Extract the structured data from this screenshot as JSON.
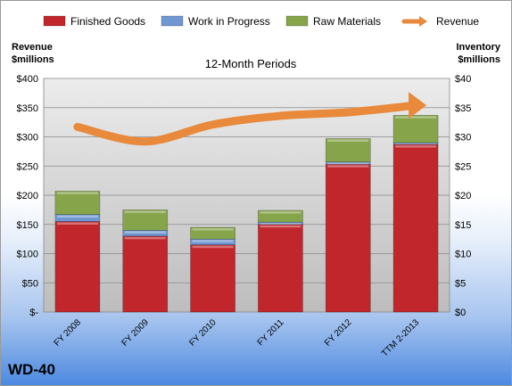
{
  "company": "WD-40",
  "chart_data": {
    "type": "bar",
    "subtitle": "12-Month Periods",
    "left_axis_label": [
      "Revenue",
      "$millions"
    ],
    "right_axis_label": [
      "Inventory",
      "$millions"
    ],
    "categories": [
      "FY 2008",
      "FY 2009",
      "FY 2010",
      "FY 2011",
      "FY 2012",
      "TTM 2-2013"
    ],
    "left_ticks": [
      "$-",
      "$50",
      "$100",
      "$150",
      "$200",
      "$250",
      "$300",
      "$350",
      "$400"
    ],
    "right_ticks": [
      "$0",
      "$5",
      "$10",
      "$15",
      "$20",
      "$25",
      "$30",
      "$35",
      "$40"
    ],
    "left_ylim": [
      0,
      400
    ],
    "right_ylim": [
      0,
      40
    ],
    "stacked": true,
    "series": [
      {
        "name": "Finished Goods",
        "color": "#c0262b",
        "values": [
          15.5,
          13.0,
          11.5,
          15.0,
          25.3,
          28.7
        ]
      },
      {
        "name": "Work in Progress",
        "color": "#6f97d1",
        "values": [
          1.2,
          1.0,
          1.0,
          0.4,
          0.4,
          0.3
        ]
      },
      {
        "name": "Raw Materials",
        "color": "#86a44a",
        "values": [
          4.0,
          3.5,
          2.0,
          2.0,
          4.0,
          4.7
        ]
      }
    ],
    "line_series": {
      "name": "Revenue",
      "color": "#e8893b",
      "values": [
        317,
        292,
        321,
        336,
        342,
        354
      ]
    },
    "grid": true,
    "legend": "top"
  }
}
